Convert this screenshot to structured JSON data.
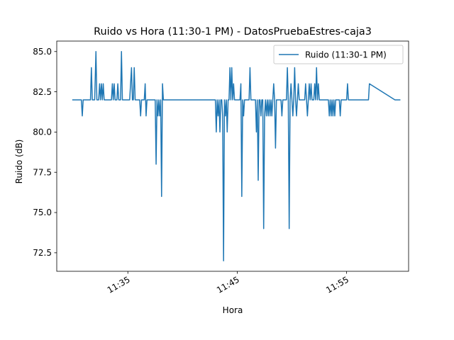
{
  "chart_data": {
    "type": "line",
    "title": "Ruido vs Hora (11:30-1 PM) - DatosPruebaEstres-caja3",
    "xlabel": "Hora",
    "ylabel": "Ruido (dB)",
    "x_unit": "time (HH:MM)",
    "xlim": [
      "11:28:30",
      "12:00:40"
    ],
    "ylim": [
      71.35,
      85.65
    ],
    "x_ticks": [
      "11:35",
      "11:45",
      "11:55"
    ],
    "y_ticks": [
      "72.5",
      "75.0",
      "77.5",
      "80.0",
      "82.5",
      "85.0"
    ],
    "legend": {
      "position": "top-right",
      "entries": [
        "Ruido (11:30-1 PM)"
      ]
    },
    "grid": false,
    "series": [
      {
        "name": "Ruido (11:30-1 PM)",
        "color": "#1f77b4",
        "points": [
          [
            "11:29:55",
            82
          ],
          [
            "11:30:45",
            82
          ],
          [
            "11:30:50",
            81
          ],
          [
            "11:30:55",
            82
          ],
          [
            "11:31:35",
            82
          ],
          [
            "11:31:40",
            84
          ],
          [
            "11:31:45",
            82
          ],
          [
            "11:31:58",
            82
          ],
          [
            "11:32:05",
            85
          ],
          [
            "11:32:10",
            82
          ],
          [
            "11:32:20",
            82
          ],
          [
            "11:32:25",
            83
          ],
          [
            "11:32:30",
            82
          ],
          [
            "11:32:35",
            83
          ],
          [
            "11:32:40",
            82
          ],
          [
            "11:32:45",
            83
          ],
          [
            "11:32:50",
            82
          ],
          [
            "11:33:30",
            82
          ],
          [
            "11:33:35",
            83
          ],
          [
            "11:33:40",
            82
          ],
          [
            "11:33:45",
            83
          ],
          [
            "11:33:50",
            82
          ],
          [
            "11:34:00",
            82
          ],
          [
            "11:34:05",
            83
          ],
          [
            "11:34:10",
            82
          ],
          [
            "11:34:20",
            82
          ],
          [
            "11:34:25",
            85
          ],
          [
            "11:34:30",
            82
          ],
          [
            "11:35:10",
            82
          ],
          [
            "11:35:20",
            84
          ],
          [
            "11:35:25",
            82
          ],
          [
            "11:35:30",
            82
          ],
          [
            "11:35:35",
            84
          ],
          [
            "11:35:40",
            82
          ],
          [
            "11:36:05",
            82
          ],
          [
            "11:36:10",
            81
          ],
          [
            "11:36:15",
            82
          ],
          [
            "11:36:30",
            82
          ],
          [
            "11:36:35",
            83
          ],
          [
            "11:36:40",
            81
          ],
          [
            "11:36:45",
            82
          ],
          [
            "11:37:30",
            82
          ],
          [
            "11:37:35",
            78
          ],
          [
            "11:37:40",
            82
          ],
          [
            "11:37:45",
            81
          ],
          [
            "11:37:50",
            82
          ],
          [
            "11:37:55",
            81
          ],
          [
            "11:38:00",
            82
          ],
          [
            "11:38:05",
            76
          ],
          [
            "11:38:10",
            83
          ],
          [
            "11:38:15",
            82
          ],
          [
            "11:43:00",
            82
          ],
          [
            "11:43:05",
            80
          ],
          [
            "11:43:10",
            82
          ],
          [
            "11:43:15",
            81
          ],
          [
            "11:43:20",
            82
          ],
          [
            "11:43:25",
            80
          ],
          [
            "11:43:30",
            82
          ],
          [
            "11:43:35",
            82
          ],
          [
            "11:43:40",
            81
          ],
          [
            "11:43:45",
            72
          ],
          [
            "11:43:50",
            82
          ],
          [
            "11:43:55",
            81
          ],
          [
            "11:44:00",
            82
          ],
          [
            "11:44:05",
            80
          ],
          [
            "11:44:10",
            82
          ],
          [
            "11:44:15",
            82
          ],
          [
            "11:44:20",
            84
          ],
          [
            "11:44:25",
            82
          ],
          [
            "11:44:30",
            84
          ],
          [
            "11:44:35",
            82
          ],
          [
            "11:44:40",
            83
          ],
          [
            "11:44:45",
            82
          ],
          [
            "11:45:10",
            82
          ],
          [
            "11:45:15",
            82
          ],
          [
            "11:45:20",
            83
          ],
          [
            "11:45:25",
            76
          ],
          [
            "11:45:30",
            82
          ],
          [
            "11:45:35",
            81
          ],
          [
            "11:45:40",
            82
          ],
          [
            "11:46:05",
            82
          ],
          [
            "11:46:10",
            84
          ],
          [
            "11:46:15",
            82
          ],
          [
            "11:46:40",
            82
          ],
          [
            "11:46:45",
            80
          ],
          [
            "11:46:50",
            82
          ],
          [
            "11:46:55",
            77
          ],
          [
            "11:47:00",
            82
          ],
          [
            "11:47:05",
            82
          ],
          [
            "11:47:10",
            81
          ],
          [
            "11:47:15",
            82
          ],
          [
            "11:47:20",
            82
          ],
          [
            "11:47:25",
            74
          ],
          [
            "11:47:30",
            81
          ],
          [
            "11:47:35",
            82
          ],
          [
            "11:47:40",
            81
          ],
          [
            "11:47:45",
            82
          ],
          [
            "11:47:50",
            81
          ],
          [
            "11:47:55",
            82
          ],
          [
            "11:48:00",
            81
          ],
          [
            "11:48:05",
            82
          ],
          [
            "11:48:10",
            81
          ],
          [
            "11:48:15",
            82
          ],
          [
            "11:48:20",
            83
          ],
          [
            "11:48:25",
            82
          ],
          [
            "11:48:30",
            79
          ],
          [
            "11:48:35",
            82
          ],
          [
            "11:49:00",
            82
          ],
          [
            "11:49:05",
            81
          ],
          [
            "11:49:10",
            82
          ],
          [
            "11:49:30",
            82
          ],
          [
            "11:49:35",
            84
          ],
          [
            "11:49:40",
            82
          ],
          [
            "11:49:45",
            74
          ],
          [
            "11:49:50",
            82
          ],
          [
            "11:49:55",
            83
          ],
          [
            "11:50:00",
            82
          ],
          [
            "11:50:05",
            81
          ],
          [
            "11:50:10",
            82
          ],
          [
            "11:50:15",
            84
          ],
          [
            "11:50:20",
            82
          ],
          [
            "11:50:25",
            81
          ],
          [
            "11:50:30",
            82
          ],
          [
            "11:50:35",
            83
          ],
          [
            "11:50:40",
            82
          ],
          [
            "11:51:10",
            82
          ],
          [
            "11:51:15",
            83
          ],
          [
            "11:51:20",
            82
          ],
          [
            "11:51:25",
            81
          ],
          [
            "11:51:30",
            82
          ],
          [
            "11:51:35",
            83
          ],
          [
            "11:51:40",
            82
          ],
          [
            "11:51:45",
            83
          ],
          [
            "11:51:50",
            82
          ],
          [
            "11:52:00",
            82
          ],
          [
            "11:52:05",
            83
          ],
          [
            "11:52:10",
            82
          ],
          [
            "11:52:15",
            84
          ],
          [
            "11:52:20",
            82
          ],
          [
            "11:52:25",
            83
          ],
          [
            "11:52:30",
            82
          ],
          [
            "11:53:20",
            82
          ],
          [
            "11:53:25",
            81
          ],
          [
            "11:53:30",
            82
          ],
          [
            "11:53:35",
            81
          ],
          [
            "11:53:40",
            82
          ],
          [
            "11:53:45",
            81
          ],
          [
            "11:53:50",
            82
          ],
          [
            "11:53:55",
            81
          ],
          [
            "11:54:00",
            82
          ],
          [
            "11:54:20",
            82
          ],
          [
            "11:54:25",
            81
          ],
          [
            "11:54:30",
            82
          ],
          [
            "11:55:00",
            82
          ],
          [
            "11:55:05",
            83
          ],
          [
            "11:55:10",
            82
          ],
          [
            "11:57:00",
            82
          ],
          [
            "11:57:05",
            83
          ],
          [
            "11:59:25",
            82
          ],
          [
            "11:59:55",
            82
          ]
        ]
      }
    ]
  }
}
